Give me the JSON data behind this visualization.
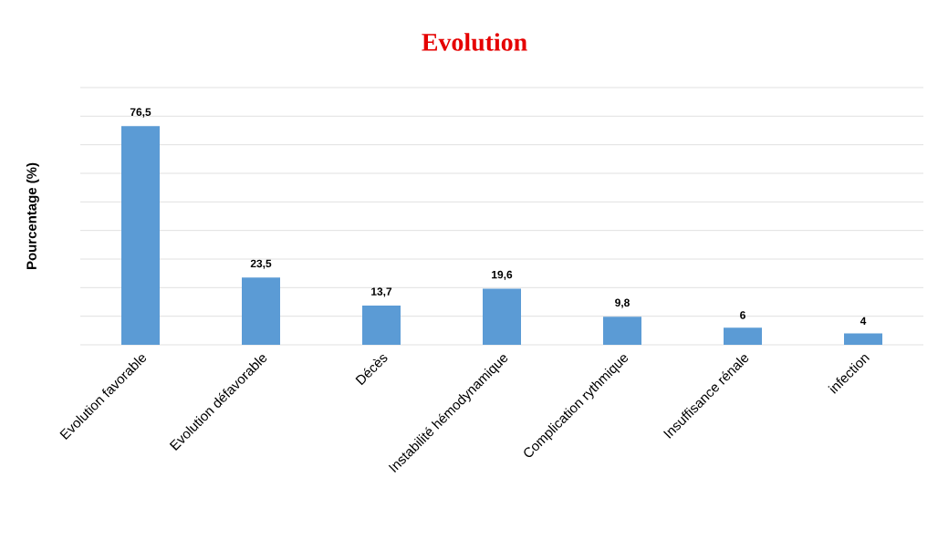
{
  "chart_data": {
    "type": "bar",
    "title": "Evolution",
    "ylabel": "Pourcentage (%)",
    "categories": [
      "Evolution favorable",
      "Evolution défavorable",
      "Décès",
      "Instabilité hémodynamique",
      "Complication rythmique",
      "Insuffisance rénale",
      "infection"
    ],
    "values": [
      76.5,
      23.5,
      13.7,
      19.6,
      9.8,
      6,
      4
    ],
    "value_labels": [
      "76,5",
      "23,5",
      "13,7",
      "19,6",
      "9,8",
      "6",
      "4"
    ],
    "color": "#5b9bd5",
    "ylim": [
      0,
      90
    ],
    "yticks": [
      0,
      10,
      20,
      30,
      40,
      50,
      60,
      70,
      80,
      90
    ],
    "tick_labels": "x",
    "grid": "y"
  }
}
